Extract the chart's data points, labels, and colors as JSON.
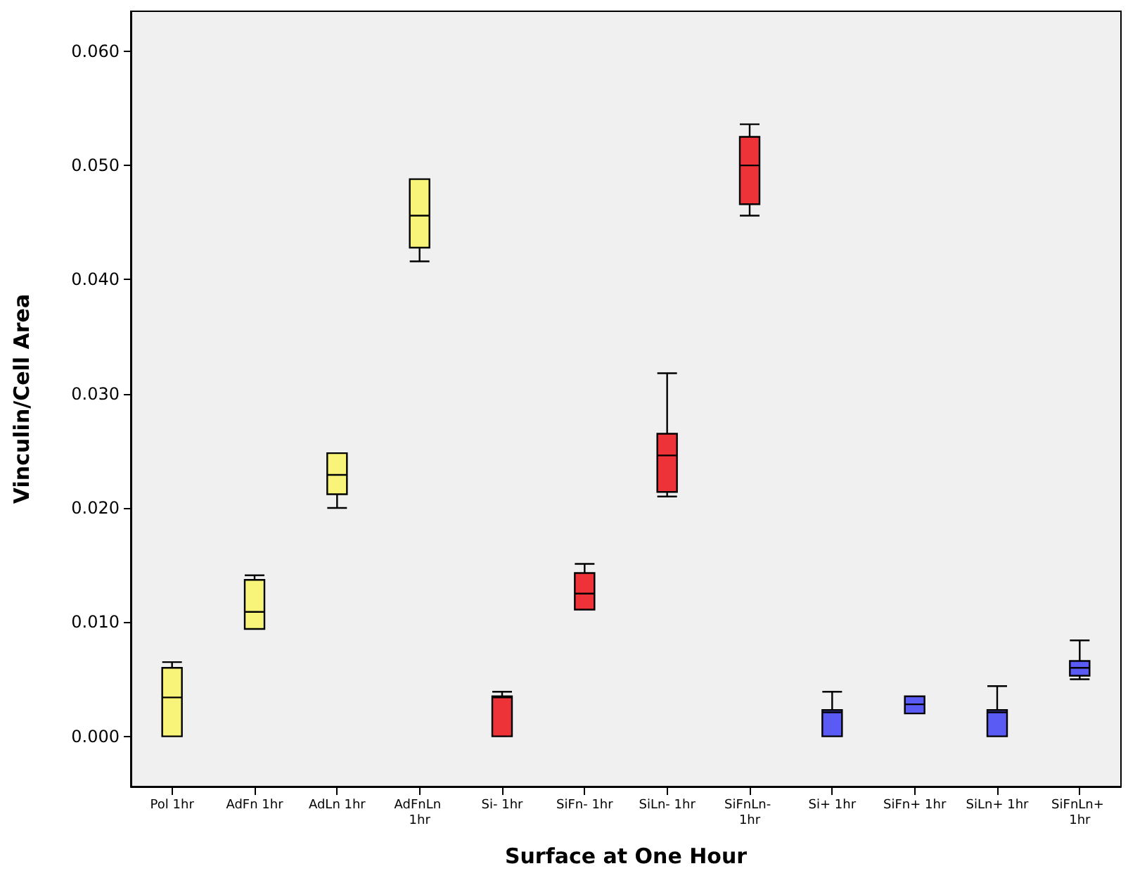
{
  "chart_data": {
    "type": "box",
    "xlabel": "Surface at One Hour",
    "ylabel": "Vinculin/Cell Area",
    "categories": [
      "Pol 1hr",
      "AdFn 1hr",
      "AdLn 1hr",
      "AdFnLn 1hr",
      "Si- 1hr",
      "SiFn- 1hr",
      "SiLn- 1hr",
      "SiFnLn- 1hr",
      "Si+ 1hr",
      "SiFn+ 1hr",
      "SiLn+ 1hr",
      "SiFnLn+ 1hr"
    ],
    "boxes": [
      {
        "low": 0,
        "q1": 0,
        "median": 0.0034,
        "q3": 0.006,
        "high": 0.0065
      },
      {
        "low": 0.0094,
        "q1": 0.0094,
        "median": 0.0109,
        "q3": 0.0137,
        "high": 0.0141
      },
      {
        "low": 0.02,
        "q1": 0.0212,
        "median": 0.0229,
        "q3": 0.0248,
        "high": 0.0248
      },
      {
        "low": 0.0416,
        "q1": 0.0428,
        "median": 0.0456,
        "q3": 0.0488,
        "high": 0.0488
      },
      {
        "low": 0,
        "q1": 0,
        "median": 0.0034,
        "q3": 0.0035,
        "high": 0.0039
      },
      {
        "low": 0.0111,
        "q1": 0.0111,
        "median": 0.0125,
        "q3": 0.0143,
        "high": 0.0151
      },
      {
        "low": 0.021,
        "q1": 0.0214,
        "median": 0.0246,
        "q3": 0.0265,
        "high": 0.0318
      },
      {
        "low": 0.0456,
        "q1": 0.0466,
        "median": 0.05,
        "q3": 0.0525,
        "high": 0.0536
      },
      {
        "low": 0,
        "q1": 0,
        "median": 0.0021,
        "q3": 0.0023,
        "high": 0.0039
      },
      {
        "low": 0.002,
        "q1": 0.002,
        "median": 0.0028,
        "q3": 0.0035,
        "high": 0.0035
      },
      {
        "low": 0,
        "q1": 0,
        "median": 0.0021,
        "q3": 0.0023,
        "high": 0.0044
      },
      {
        "low": 0.005,
        "q1": 0.0053,
        "median": 0.006,
        "q3": 0.0066,
        "high": 0.0084
      }
    ],
    "colors": [
      "#f8f47a",
      "#f8f47a",
      "#f8f47a",
      "#f8f47a",
      "#ee3338",
      "#ee3338",
      "#ee3338",
      "#ee3338",
      "#5a5af5",
      "#5a5af5",
      "#5a5af5",
      "#5a5af5"
    ],
    "ylim": [
      -0.0044,
      0.0635
    ],
    "yticks": [
      {
        "value": 0,
        "label": "0.000"
      },
      {
        "value": 0.01,
        "label": "0.010"
      },
      {
        "value": 0.02,
        "label": "0.020"
      },
      {
        "value": 0.03,
        "label": "0.030"
      },
      {
        "value": 0.04,
        "label": "0.040"
      },
      {
        "value": 0.05,
        "label": "0.050"
      },
      {
        "value": 0.06,
        "label": "0.060"
      }
    ],
    "grid": false
  }
}
